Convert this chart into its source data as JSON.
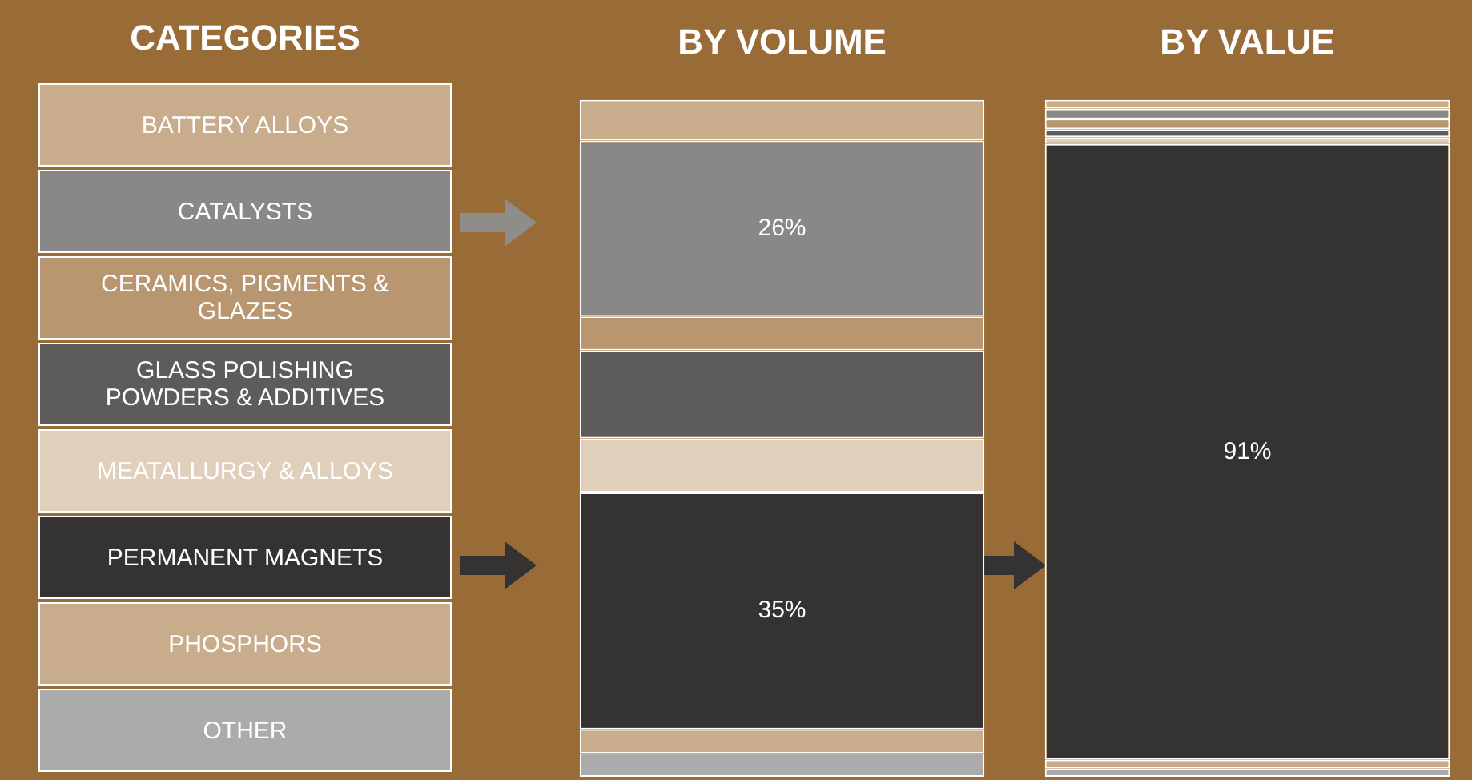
{
  "chart_data": {
    "type": "bar",
    "stacked": true,
    "ylim": [
      0,
      100
    ],
    "tick_labels": "x",
    "legend": "left",
    "legend_title": "CATEGORIES",
    "categories": [
      "BY VOLUME",
      "BY VALUE"
    ],
    "series": [
      {
        "name": "OTHER",
        "color": "#ababab",
        "values": [
          3.5,
          1.2
        ]
      },
      {
        "name": "PHOSPHORS",
        "color": "#c8ac8c",
        "values": [
          3.5,
          1.3
        ]
      },
      {
        "name": "PERMANENT MAGNETS",
        "color": "#343332",
        "values": [
          35,
          91
        ],
        "value_labels": [
          "35%",
          "91%"
        ]
      },
      {
        "name": "MEATALLURGY & ALLOYS",
        "color": "#dfcfbb",
        "values": [
          8,
          1
        ]
      },
      {
        "name": "GLASS POLISHING POWDERS & ADDITIVES",
        "color": "#5d5c5a",
        "values": [
          13,
          1.2
        ]
      },
      {
        "name": "CERAMICS, PIGMENTS & GLAZES",
        "color": "#b89670",
        "values": [
          5,
          1.5
        ]
      },
      {
        "name": "CATALYSTS",
        "color": "#898886",
        "values": [
          26,
          1.5
        ],
        "value_labels": [
          "26%",
          null
        ]
      },
      {
        "name": "BATTERY ALLOYS",
        "color": "#c8ac8c",
        "values": [
          6,
          1.3
        ]
      }
    ]
  }
}
